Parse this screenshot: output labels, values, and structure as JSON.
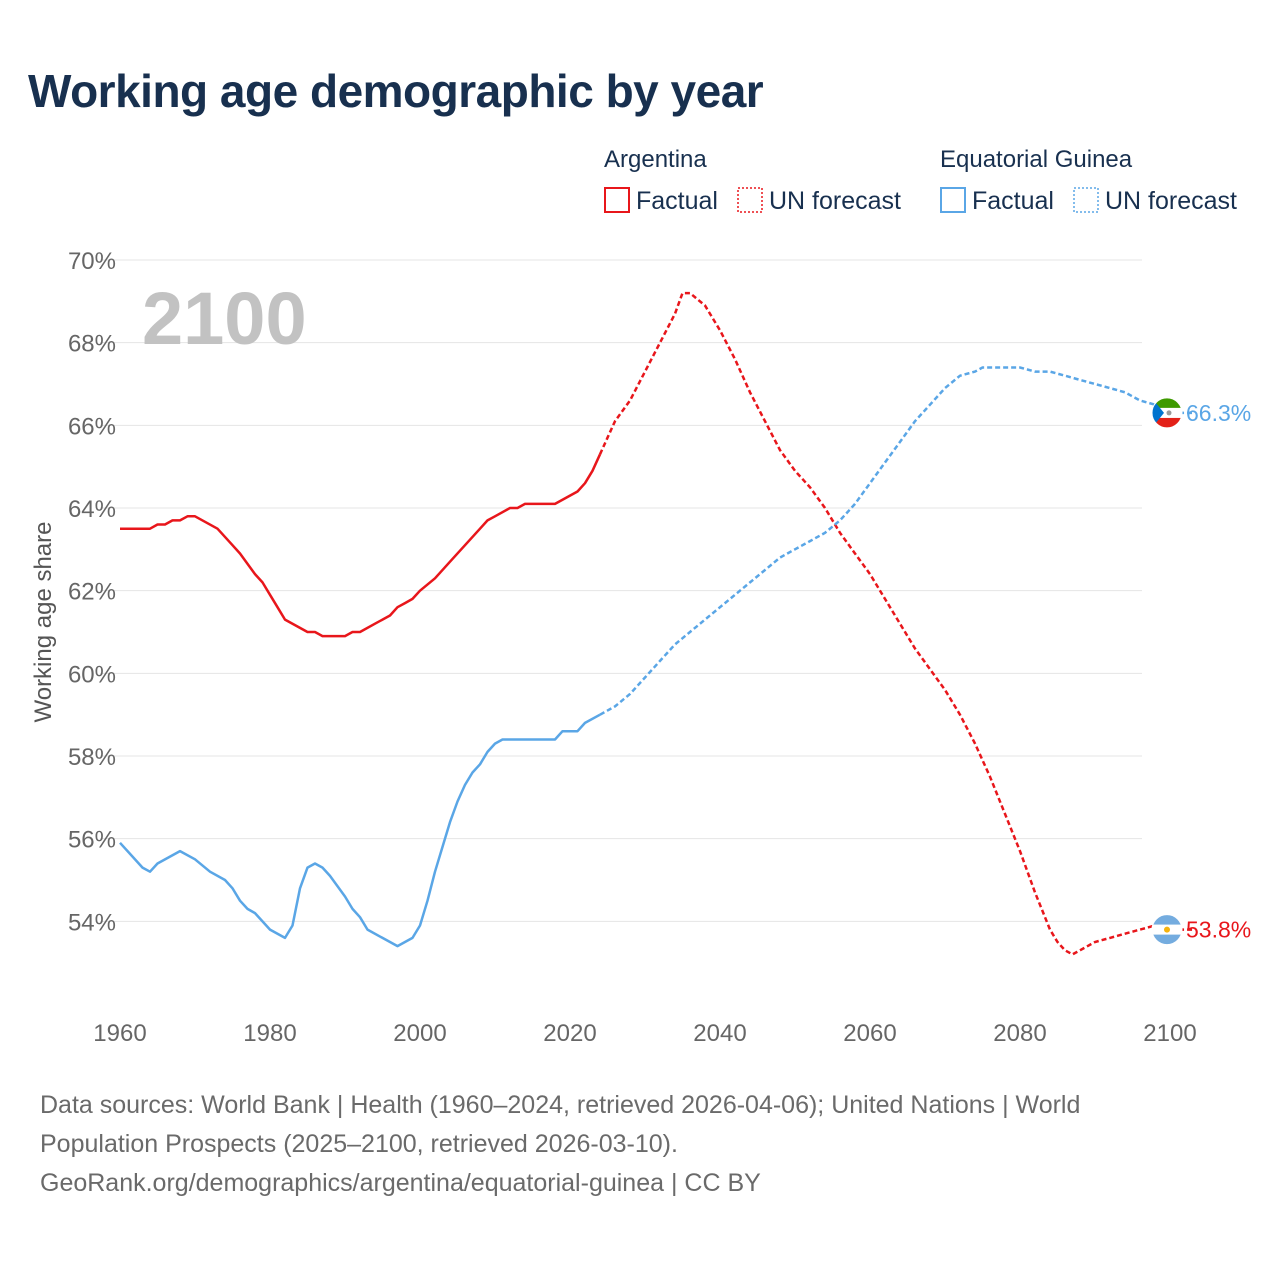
{
  "title": "Working age demographic by year",
  "year_watermark": "2100",
  "legend": {
    "groups": [
      {
        "country": "Argentina",
        "factual_label": "Factual",
        "forecast_label": "UN forecast",
        "color": "#e8161b"
      },
      {
        "country": "Equatorial Guinea",
        "factual_label": "Factual",
        "forecast_label": "UN forecast",
        "color": "#5aa6e6"
      }
    ]
  },
  "source": {
    "line1": "Data sources: World Bank | Health (1960–2024, retrieved 2026-04-06); United Nations | World",
    "line2": "Population Prospects (2025–2100, retrieved 2026-03-10).",
    "line3": "GeoRank.org/demographics/argentina/equatorial-guinea | CC BY"
  },
  "chart_data": {
    "type": "line",
    "title": "Working age demographic by year",
    "xlabel": "",
    "ylabel": "Working age share",
    "xlim": [
      1960,
      2100
    ],
    "ylim": [
      52,
      70
    ],
    "x_ticks": [
      1960,
      1980,
      2000,
      2020,
      2040,
      2060,
      2080,
      2100
    ],
    "x_tick_labels": [
      "1960",
      "1980",
      "2000",
      "2020",
      "2040",
      "2060",
      "2080",
      "2100"
    ],
    "y_ticks": [
      54,
      56,
      58,
      60,
      62,
      64,
      66,
      68,
      70
    ],
    "y_tick_labels": [
      "54%",
      "56%",
      "58%",
      "60%",
      "62%",
      "64%",
      "66%",
      "68%",
      "70%"
    ],
    "grid": true,
    "factual_end_year": 2024,
    "series": [
      {
        "name": "Argentina",
        "color": "#e8161b",
        "end_label": "53.8%",
        "end_icon": "argentina-flag-icon",
        "points": [
          [
            1960,
            63.5
          ],
          [
            1964,
            63.5
          ],
          [
            1965,
            63.6
          ],
          [
            1966,
            63.6
          ],
          [
            1967,
            63.7
          ],
          [
            1968,
            63.7
          ],
          [
            1969,
            63.8
          ],
          [
            1970,
            63.8
          ],
          [
            1973,
            63.5
          ],
          [
            1975,
            63.1
          ],
          [
            1976,
            62.9
          ],
          [
            1978,
            62.4
          ],
          [
            1979,
            62.2
          ],
          [
            1980,
            61.9
          ],
          [
            1981,
            61.6
          ],
          [
            1982,
            61.3
          ],
          [
            1984,
            61.1
          ],
          [
            1985,
            61.0
          ],
          [
            1986,
            61.0
          ],
          [
            1987,
            60.9
          ],
          [
            1990,
            60.9
          ],
          [
            1991,
            61.0
          ],
          [
            1992,
            61.0
          ],
          [
            1994,
            61.2
          ],
          [
            1996,
            61.4
          ],
          [
            1997,
            61.6
          ],
          [
            1998,
            61.7
          ],
          [
            1999,
            61.8
          ],
          [
            2000,
            62.0
          ],
          [
            2002,
            62.3
          ],
          [
            2004,
            62.7
          ],
          [
            2006,
            63.1
          ],
          [
            2008,
            63.5
          ],
          [
            2009,
            63.7
          ],
          [
            2010,
            63.8
          ],
          [
            2012,
            64.0
          ],
          [
            2013,
            64.0
          ],
          [
            2014,
            64.1
          ],
          [
            2018,
            64.1
          ],
          [
            2020,
            64.3
          ],
          [
            2021,
            64.4
          ],
          [
            2022,
            64.6
          ],
          [
            2023,
            64.9
          ],
          [
            2024,
            65.3
          ],
          [
            2025,
            65.7
          ],
          [
            2026,
            66.1
          ],
          [
            2028,
            66.6
          ],
          [
            2030,
            67.3
          ],
          [
            2032,
            68.0
          ],
          [
            2034,
            68.7
          ],
          [
            2035,
            69.2
          ],
          [
            2036,
            69.2
          ],
          [
            2038,
            68.9
          ],
          [
            2040,
            68.3
          ],
          [
            2042,
            67.6
          ],
          [
            2044,
            66.8
          ],
          [
            2046,
            66.1
          ],
          [
            2048,
            65.4
          ],
          [
            2050,
            64.9
          ],
          [
            2052,
            64.5
          ],
          [
            2054,
            64.0
          ],
          [
            2056,
            63.4
          ],
          [
            2058,
            62.9
          ],
          [
            2060,
            62.4
          ],
          [
            2062,
            61.8
          ],
          [
            2064,
            61.2
          ],
          [
            2066,
            60.6
          ],
          [
            2068,
            60.1
          ],
          [
            2070,
            59.6
          ],
          [
            2072,
            59.0
          ],
          [
            2074,
            58.3
          ],
          [
            2076,
            57.5
          ],
          [
            2078,
            56.6
          ],
          [
            2080,
            55.7
          ],
          [
            2082,
            54.7
          ],
          [
            2084,
            53.8
          ],
          [
            2085,
            53.5
          ],
          [
            2086,
            53.3
          ],
          [
            2087,
            53.2
          ],
          [
            2088,
            53.3
          ],
          [
            2090,
            53.5
          ],
          [
            2092,
            53.6
          ],
          [
            2094,
            53.7
          ],
          [
            2096,
            53.8
          ],
          [
            2098,
            53.9
          ],
          [
            2100,
            53.8
          ],
          [
            2103,
            53.8
          ]
        ]
      },
      {
        "name": "Equatorial Guinea",
        "color": "#5aa6e6",
        "end_label": "66.3%",
        "end_icon": "equatorial-guinea-flag-icon",
        "points": [
          [
            1960,
            55.9
          ],
          [
            1963,
            55.3
          ],
          [
            1964,
            55.2
          ],
          [
            1965,
            55.4
          ],
          [
            1968,
            55.7
          ],
          [
            1970,
            55.5
          ],
          [
            1972,
            55.2
          ],
          [
            1974,
            55.0
          ],
          [
            1975,
            54.8
          ],
          [
            1976,
            54.5
          ],
          [
            1977,
            54.3
          ],
          [
            1978,
            54.2
          ],
          [
            1980,
            53.8
          ],
          [
            1982,
            53.6
          ],
          [
            1983,
            53.9
          ],
          [
            1984,
            54.8
          ],
          [
            1985,
            55.3
          ],
          [
            1986,
            55.4
          ],
          [
            1987,
            55.3
          ],
          [
            1988,
            55.1
          ],
          [
            1990,
            54.6
          ],
          [
            1991,
            54.3
          ],
          [
            1992,
            54.1
          ],
          [
            1993,
            53.8
          ],
          [
            1995,
            53.6
          ],
          [
            1996,
            53.5
          ],
          [
            1997,
            53.4
          ],
          [
            1998,
            53.5
          ],
          [
            1999,
            53.6
          ],
          [
            2000,
            53.9
          ],
          [
            2001,
            54.5
          ],
          [
            2002,
            55.2
          ],
          [
            2003,
            55.8
          ],
          [
            2004,
            56.4
          ],
          [
            2005,
            56.9
          ],
          [
            2006,
            57.3
          ],
          [
            2007,
            57.6
          ],
          [
            2008,
            57.8
          ],
          [
            2009,
            58.1
          ],
          [
            2010,
            58.3
          ],
          [
            2011,
            58.4
          ],
          [
            2018,
            58.4
          ],
          [
            2019,
            58.6
          ],
          [
            2021,
            58.6
          ],
          [
            2022,
            58.8
          ],
          [
            2024,
            59.0
          ],
          [
            2026,
            59.2
          ],
          [
            2028,
            59.5
          ],
          [
            2030,
            59.9
          ],
          [
            2032,
            60.3
          ],
          [
            2034,
            60.7
          ],
          [
            2036,
            61.0
          ],
          [
            2038,
            61.3
          ],
          [
            2040,
            61.6
          ],
          [
            2042,
            61.9
          ],
          [
            2044,
            62.2
          ],
          [
            2046,
            62.5
          ],
          [
            2048,
            62.8
          ],
          [
            2050,
            63.0
          ],
          [
            2052,
            63.2
          ],
          [
            2054,
            63.4
          ],
          [
            2056,
            63.7
          ],
          [
            2058,
            64.1
          ],
          [
            2060,
            64.6
          ],
          [
            2062,
            65.1
          ],
          [
            2064,
            65.6
          ],
          [
            2066,
            66.1
          ],
          [
            2068,
            66.5
          ],
          [
            2070,
            66.9
          ],
          [
            2072,
            67.2
          ],
          [
            2074,
            67.3
          ],
          [
            2075,
            67.4
          ],
          [
            2080,
            67.4
          ],
          [
            2082,
            67.3
          ],
          [
            2084,
            67.3
          ],
          [
            2086,
            67.2
          ],
          [
            2088,
            67.1
          ],
          [
            2090,
            67.0
          ],
          [
            2092,
            66.9
          ],
          [
            2094,
            66.8
          ],
          [
            2096,
            66.6
          ],
          [
            2098,
            66.5
          ],
          [
            2100,
            66.3
          ],
          [
            2103,
            66.3
          ]
        ]
      }
    ]
  }
}
